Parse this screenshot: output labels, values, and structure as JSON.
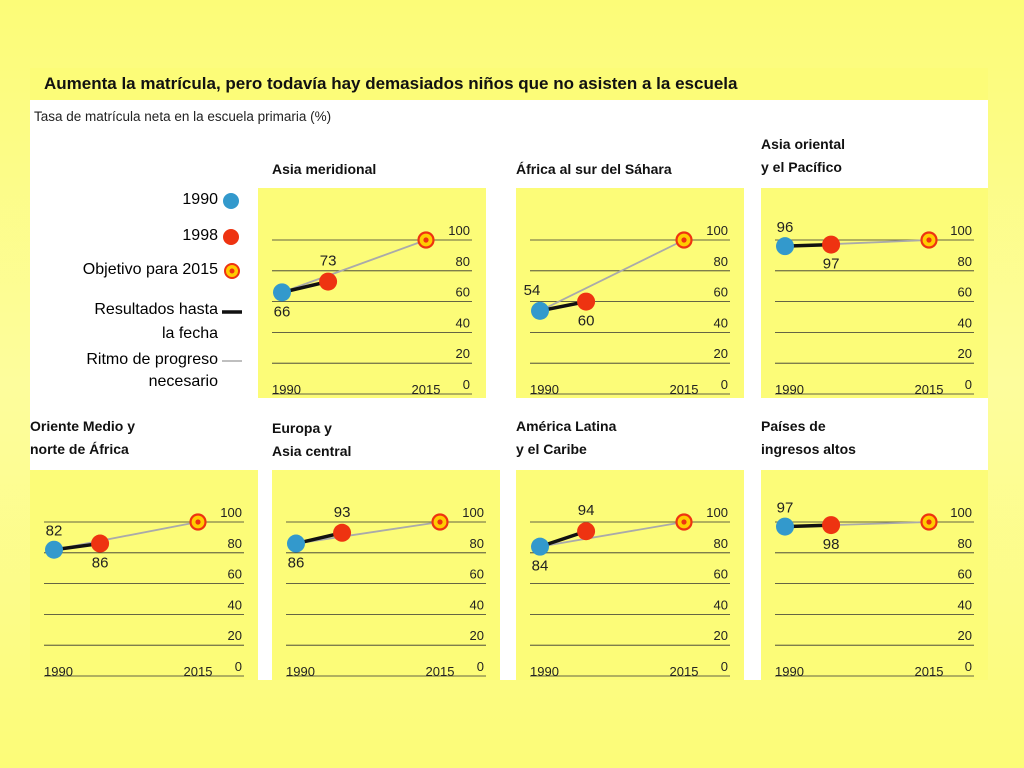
{
  "header": {
    "title": "Aumenta la matrícula, pero todavía hay demasiados niños que no asisten a la escuela",
    "subtitle": "Tasa de matrícula neta en la escuela primaria (%)"
  },
  "legend": {
    "y1990": "1990",
    "y1998": "1998",
    "target": "Objetivo para 2015",
    "results_line1": "Resultados hasta",
    "results_line2": "la fecha",
    "required_line1": "Ritmo de progreso",
    "required_line2": "necesario"
  },
  "colors": {
    "c1990": "#3399cc",
    "c1998": "#ee3311",
    "target_ring": "#ee3311",
    "target_center": "#ffcc00",
    "results_line": "#111111",
    "required_line": "#aaaaaa",
    "panel_bg": "#fcfc78"
  },
  "chart_data": [
    {
      "type": "line",
      "region_line1": "Asia meridional",
      "region_line2": "",
      "v1990": 66,
      "v1998": 73,
      "target": 100,
      "x": [
        "1990",
        "1998",
        "2015"
      ],
      "xtick_labels": [
        "1990",
        "2015"
      ],
      "yticks": [
        "100",
        "80",
        "60",
        "40",
        "20",
        "0"
      ],
      "ylim": [
        0,
        100
      ]
    },
    {
      "type": "line",
      "region_line1": "África al sur del Sáhara",
      "region_line2": "",
      "v1990": 54,
      "v1998": 60,
      "target": 100,
      "x": [
        "1990",
        "1998",
        "2015"
      ],
      "xtick_labels": [
        "1990",
        "2015"
      ],
      "yticks": [
        "100",
        "80",
        "60",
        "40",
        "20",
        "0"
      ],
      "ylim": [
        0,
        100
      ]
    },
    {
      "type": "line",
      "region_line1": "Asia oriental",
      "region_line2": "y el Pacífico",
      "v1990": 96,
      "v1998": 97,
      "target": 100,
      "x": [
        "1990",
        "1998",
        "2015"
      ],
      "xtick_labels": [
        "1990",
        "2015"
      ],
      "yticks": [
        "100",
        "80",
        "60",
        "40",
        "20",
        "0"
      ],
      "ylim": [
        0,
        100
      ]
    },
    {
      "type": "line",
      "region_line1": "Oriente Medio y",
      "region_line2": "norte de África",
      "v1990": 82,
      "v1998": 86,
      "target": 100,
      "x": [
        "1990",
        "1998",
        "2015"
      ],
      "xtick_labels": [
        "1990",
        "2015"
      ],
      "yticks": [
        "100",
        "80",
        "60",
        "40",
        "20",
        "0"
      ],
      "ylim": [
        0,
        100
      ]
    },
    {
      "type": "line",
      "region_line1": "Europa y",
      "region_line2": "Asia central",
      "v1990": 86,
      "v1998": 93,
      "target": 100,
      "x": [
        "1990",
        "1998",
        "2015"
      ],
      "xtick_labels": [
        "1990",
        "2015"
      ],
      "yticks": [
        "100",
        "80",
        "60",
        "40",
        "20",
        "0"
      ],
      "ylim": [
        0,
        100
      ]
    },
    {
      "type": "line",
      "region_line1": "América Latina",
      "region_line2": "y el Caribe",
      "v1990": 84,
      "v1998": 94,
      "target": 100,
      "x": [
        "1990",
        "1998",
        "2015"
      ],
      "xtick_labels": [
        "1990",
        "2015"
      ],
      "yticks": [
        "100",
        "80",
        "60",
        "40",
        "20",
        "0"
      ],
      "ylim": [
        0,
        100
      ]
    },
    {
      "type": "line",
      "region_line1": "Países de",
      "region_line2": "ingresos altos",
      "v1990": 97,
      "v1998": 98,
      "target": 100,
      "x": [
        "1990",
        "1998",
        "2015"
      ],
      "xtick_labels": [
        "1990",
        "2015"
      ],
      "yticks": [
        "100",
        "80",
        "60",
        "40",
        "20",
        "0"
      ],
      "ylim": [
        0,
        100
      ]
    }
  ]
}
